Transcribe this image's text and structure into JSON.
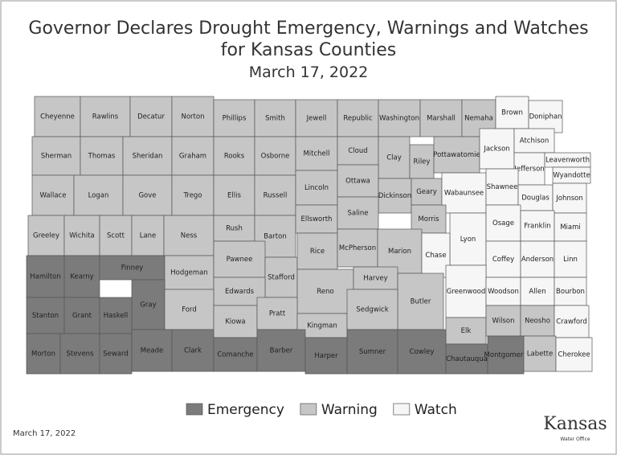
{
  "header": {
    "title_lines": [
      "Governor Declares Drought Emergency, Warnings and Watches",
      "for Kansas Counties"
    ],
    "date": "March 17, 2022"
  },
  "legend": [
    {
      "label": "Emergency",
      "color": "#7b7b7b"
    },
    {
      "label": "Warning",
      "color": "#c6c6c6"
    },
    {
      "label": "Watch",
      "color": "#f6f6f6"
    }
  ],
  "counties": [
    {
      "name": "Cheyenne",
      "status": "Warning"
    },
    {
      "name": "Rawlins",
      "status": "Warning"
    },
    {
      "name": "Decatur",
      "status": "Warning"
    },
    {
      "name": "Norton",
      "status": "Warning"
    },
    {
      "name": "Phillips",
      "status": "Warning"
    },
    {
      "name": "Smith",
      "status": "Warning"
    },
    {
      "name": "Jewell",
      "status": "Warning"
    },
    {
      "name": "Republic",
      "status": "Warning"
    },
    {
      "name": "Washington",
      "status": "Warning"
    },
    {
      "name": "Marshall",
      "status": "Warning"
    },
    {
      "name": "Nemaha",
      "status": "Warning"
    },
    {
      "name": "Brown",
      "status": "Watch"
    },
    {
      "name": "Doniphan",
      "status": "Watch"
    },
    {
      "name": "Sherman",
      "status": "Warning"
    },
    {
      "name": "Thomas",
      "status": "Warning"
    },
    {
      "name": "Sheridan",
      "status": "Warning"
    },
    {
      "name": "Graham",
      "status": "Warning"
    },
    {
      "name": "Rooks",
      "status": "Warning"
    },
    {
      "name": "Osborne",
      "status": "Warning"
    },
    {
      "name": "Mitchell",
      "status": "Warning"
    },
    {
      "name": "Cloud",
      "status": "Warning"
    },
    {
      "name": "Clay",
      "status": "Warning"
    },
    {
      "name": "Riley",
      "status": "Warning"
    },
    {
      "name": "Pottawatomie",
      "status": "Warning"
    },
    {
      "name": "Jackson",
      "status": "Watch"
    },
    {
      "name": "Atchison",
      "status": "Watch"
    },
    {
      "name": "Jefferson",
      "status": "Watch"
    },
    {
      "name": "Leavenworth",
      "status": "Watch"
    },
    {
      "name": "Wallace",
      "status": "Warning"
    },
    {
      "name": "Logan",
      "status": "Warning"
    },
    {
      "name": "Gove",
      "status": "Warning"
    },
    {
      "name": "Trego",
      "status": "Warning"
    },
    {
      "name": "Ellis",
      "status": "Warning"
    },
    {
      "name": "Russell",
      "status": "Warning"
    },
    {
      "name": "Lincoln",
      "status": "Warning"
    },
    {
      "name": "Ottawa",
      "status": "Warning"
    },
    {
      "name": "Dickinson",
      "status": "Warning"
    },
    {
      "name": "Geary",
      "status": "Warning"
    },
    {
      "name": "Wabaunsee",
      "status": "Watch"
    },
    {
      "name": "Shawnee",
      "status": "Watch"
    },
    {
      "name": "Douglas",
      "status": "Watch"
    },
    {
      "name": "Wyandotte",
      "status": "Watch"
    },
    {
      "name": "Johnson",
      "status": "Watch"
    },
    {
      "name": "Greeley",
      "status": "Warning"
    },
    {
      "name": "Wichita",
      "status": "Warning"
    },
    {
      "name": "Scott",
      "status": "Warning"
    },
    {
      "name": "Lane",
      "status": "Warning"
    },
    {
      "name": "Ness",
      "status": "Warning"
    },
    {
      "name": "Rush",
      "status": "Warning"
    },
    {
      "name": "Barton",
      "status": "Warning"
    },
    {
      "name": "Ellsworth",
      "status": "Warning"
    },
    {
      "name": "Saline",
      "status": "Warning"
    },
    {
      "name": "Morris",
      "status": "Warning"
    },
    {
      "name": "Lyon",
      "status": "Watch"
    },
    {
      "name": "Osage",
      "status": "Watch"
    },
    {
      "name": "Franklin",
      "status": "Watch"
    },
    {
      "name": "Miami",
      "status": "Watch"
    },
    {
      "name": "Hamilton",
      "status": "Emergency"
    },
    {
      "name": "Kearny",
      "status": "Emergency"
    },
    {
      "name": "Finney",
      "status": "Emergency"
    },
    {
      "name": "Hodgeman",
      "status": "Warning"
    },
    {
      "name": "Pawnee",
      "status": "Warning"
    },
    {
      "name": "Stafford",
      "status": "Warning"
    },
    {
      "name": "Rice",
      "status": "Warning"
    },
    {
      "name": "McPherson",
      "status": "Warning"
    },
    {
      "name": "Marion",
      "status": "Warning"
    },
    {
      "name": "Chase",
      "status": "Watch"
    },
    {
      "name": "Coffey",
      "status": "Watch"
    },
    {
      "name": "Anderson",
      "status": "Watch"
    },
    {
      "name": "Linn",
      "status": "Watch"
    },
    {
      "name": "Gray",
      "status": "Emergency"
    },
    {
      "name": "Edwards",
      "status": "Warning"
    },
    {
      "name": "Reno",
      "status": "Warning"
    },
    {
      "name": "Harvey",
      "status": "Warning"
    },
    {
      "name": "Butler",
      "status": "Warning"
    },
    {
      "name": "Greenwood",
      "status": "Watch"
    },
    {
      "name": "Woodson",
      "status": "Watch"
    },
    {
      "name": "Allen",
      "status": "Watch"
    },
    {
      "name": "Bourbon",
      "status": "Watch"
    },
    {
      "name": "Stanton",
      "status": "Emergency"
    },
    {
      "name": "Grant",
      "status": "Emergency"
    },
    {
      "name": "Haskell",
      "status": "Emergency"
    },
    {
      "name": "Ford",
      "status": "Warning"
    },
    {
      "name": "Kiowa",
      "status": "Warning"
    },
    {
      "name": "Pratt",
      "status": "Warning"
    },
    {
      "name": "Kingman",
      "status": "Warning"
    },
    {
      "name": "Sedgwick",
      "status": "Warning"
    },
    {
      "name": "Elk",
      "status": "Warning"
    },
    {
      "name": "Wilson",
      "status": "Warning"
    },
    {
      "name": "Neosho",
      "status": "Warning"
    },
    {
      "name": "Crawford",
      "status": "Watch"
    },
    {
      "name": "Morton",
      "status": "Emergency"
    },
    {
      "name": "Stevens",
      "status": "Emergency"
    },
    {
      "name": "Seward",
      "status": "Emergency"
    },
    {
      "name": "Meade",
      "status": "Emergency"
    },
    {
      "name": "Clark",
      "status": "Emergency"
    },
    {
      "name": "Comanche",
      "status": "Emergency"
    },
    {
      "name": "Barber",
      "status": "Emergency"
    },
    {
      "name": "Harper",
      "status": "Emergency"
    },
    {
      "name": "Sumner",
      "status": "Emergency"
    },
    {
      "name": "Cowley",
      "status": "Emergency"
    },
    {
      "name": "Chautauqua",
      "status": "Emergency"
    },
    {
      "name": "Montgomery",
      "status": "Emergency"
    },
    {
      "name": "Labette",
      "status": "Warning"
    },
    {
      "name": "Cherokee",
      "status": "Watch"
    }
  ],
  "footer": {
    "date": "March 17, 2022"
  },
  "logo": {
    "name": "Kansas",
    "subtitle": "Water Office"
  }
}
